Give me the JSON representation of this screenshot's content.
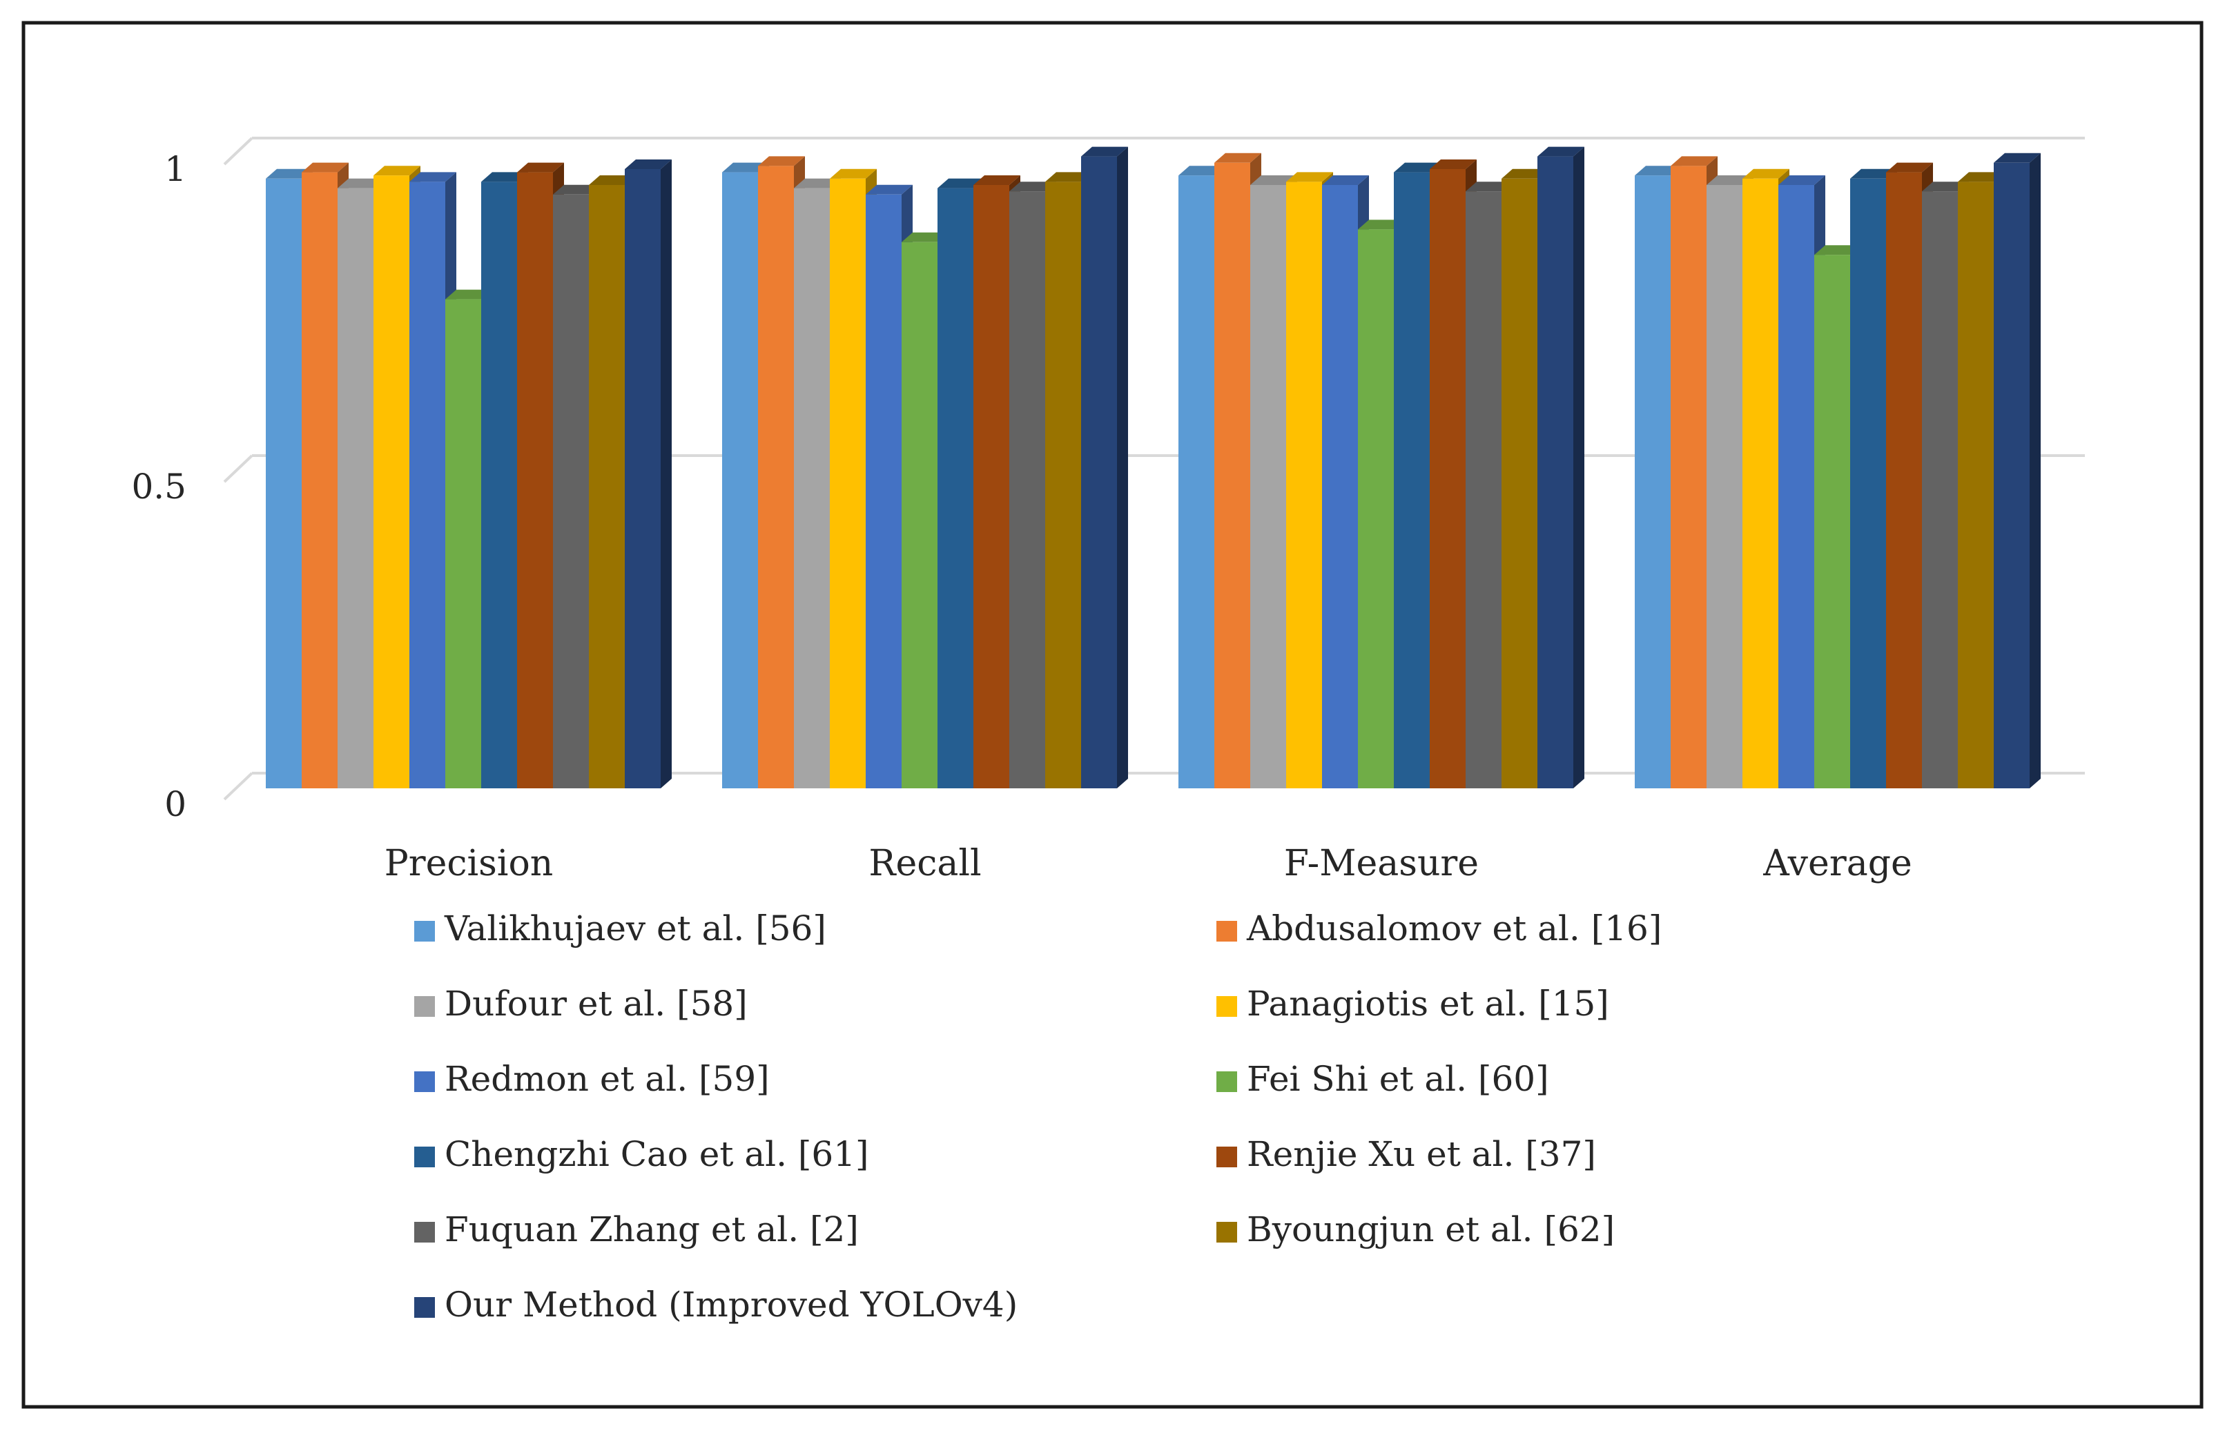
{
  "chart_data": {
    "type": "bar",
    "style": "3d-clustered-column",
    "title": "",
    "xlabel": "",
    "ylabel": "",
    "ylim": [
      0,
      1
    ],
    "yticks": [
      {
        "value": 0,
        "label": "0"
      },
      {
        "value": 0.5,
        "label": "0.5"
      },
      {
        "value": 1,
        "label": "1"
      }
    ],
    "grid": true,
    "legend_position": "bottom",
    "categories": [
      "Precision",
      "Recall",
      "F-Measure",
      "Average"
    ],
    "series": [
      {
        "name": "Valikhujaev et al. [56]",
        "color": "#5B9BD5",
        "values": [
          0.96,
          0.97,
          0.965,
          0.965
        ]
      },
      {
        "name": "Abdusalomov et al. [16]",
        "color": "#ED7D31",
        "values": [
          0.97,
          0.98,
          0.985,
          0.98
        ]
      },
      {
        "name": "Dufour et al. [58]",
        "color": "#A5A5A5",
        "values": [
          0.945,
          0.945,
          0.95,
          0.95
        ]
      },
      {
        "name": "Panagiotis et al. [15]",
        "color": "#FFC000",
        "values": [
          0.965,
          0.96,
          0.955,
          0.96
        ]
      },
      {
        "name": "Redmon et al.  [59]",
        "color": "#4472C4",
        "values": [
          0.955,
          0.935,
          0.95,
          0.95
        ]
      },
      {
        "name": "Fei Shi et al. [60]",
        "color": "#70AD47",
        "values": [
          0.77,
          0.86,
          0.88,
          0.84
        ]
      },
      {
        "name": "Chengzhi Cao et al.  [61]",
        "color": "#255E91",
        "values": [
          0.955,
          0.945,
          0.97,
          0.96
        ]
      },
      {
        "name": "Renjie Xu et al. [37]",
        "color": "#9E480E",
        "values": [
          0.97,
          0.95,
          0.975,
          0.97
        ]
      },
      {
        "name": "Fuquan Zhang et al. [2]",
        "color": "#636363",
        "values": [
          0.935,
          0.94,
          0.94,
          0.94
        ]
      },
      {
        "name": "Byoungjun et al. [62]",
        "color": "#997300",
        "values": [
          0.95,
          0.955,
          0.96,
          0.955
        ]
      },
      {
        "name": "Our Method (Improved YOLOv4)",
        "color": "#264478",
        "values": [
          0.975,
          0.995,
          0.995,
          0.985
        ]
      }
    ]
  }
}
